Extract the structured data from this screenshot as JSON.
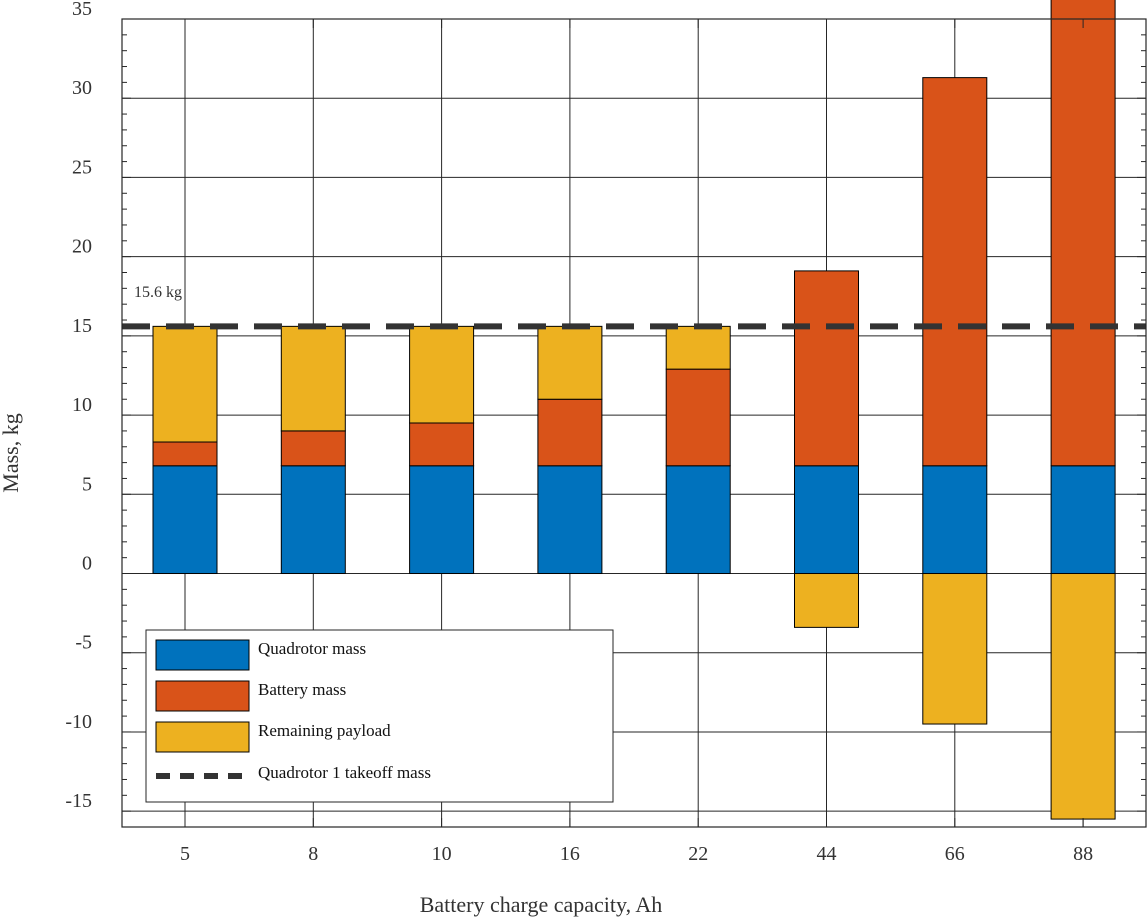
{
  "chart_data": {
    "type": "bar",
    "stacked": true,
    "categories": [
      "5",
      "8",
      "10",
      "16",
      "22",
      "44",
      "66",
      "88"
    ],
    "series": [
      {
        "name": "Quadrotor mass",
        "color": "#0072BD",
        "values": [
          6.8,
          6.8,
          6.8,
          6.8,
          6.8,
          6.8,
          6.8,
          6.8
        ]
      },
      {
        "name": "Battery mass",
        "color": "#D95319",
        "values": [
          1.5,
          2.2,
          2.7,
          4.2,
          6.1,
          12.3,
          24.5,
          30.6
        ]
      },
      {
        "name": "Remaining payload",
        "color": "#EDB120",
        "values": [
          7.3,
          6.6,
          6.1,
          4.6,
          2.7,
          -3.4,
          -9.5,
          -15.5
        ]
      }
    ],
    "reference_line": {
      "name": "Quadrotor 1 takeoff mass",
      "value": 15.6,
      "annotation": "15.6 kg",
      "style": "dashed"
    },
    "xlabel": "Battery charge capacity, Ah",
    "ylabel": "Mass, kg",
    "ylim": [
      -16,
      35
    ],
    "yticks": [
      -15,
      -10,
      -5,
      0,
      5,
      10,
      15,
      20,
      25,
      30,
      35
    ],
    "ytick_labels": [
      "-15",
      "-10",
      "-5",
      "0",
      "5",
      "10",
      "15",
      "20",
      "25",
      "30",
      "35"
    ],
    "grid": true,
    "legend_position": "bottom-left"
  }
}
